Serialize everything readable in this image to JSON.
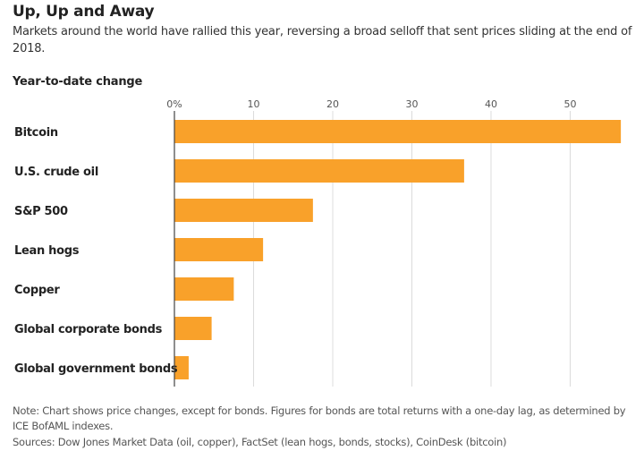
{
  "header": {
    "title": "Up, Up and Away",
    "subtitle": "Markets around the world have rallied this year, reversing a broad selloff that sent prices sliding at the end of 2018."
  },
  "footer": {
    "note": "Note: Chart shows price changes, except for bonds. Figures for bonds are total returns with a one-day lag, as determined by ICE BofAML indexes.",
    "sources": "Sources: Dow Jones Market Data (oil, copper), FactSet (lean hogs, bonds, stocks), CoinDesk (bitcoin)"
  },
  "chart_data": {
    "type": "bar",
    "orientation": "horizontal",
    "title": "Up, Up and Away",
    "subtitle": "Markets around the world have rallied this year, reversing a broad selloff that sent prices sliding at the end of 2018.",
    "ylabel": "Year-to-date change",
    "xlabel": "",
    "categories": [
      "Bitcoin",
      "U.S. crude oil",
      "S&P 500",
      "Lean hogs",
      "Copper",
      "Global corporate bonds",
      "Global government bonds"
    ],
    "values": [
      56.4,
      36.6,
      17.5,
      11.2,
      7.5,
      4.7,
      1.8
    ],
    "xlim": [
      0,
      56.5
    ],
    "ticks": [
      0,
      10,
      20,
      30,
      40,
      50
    ],
    "tick_labels": [
      "0%",
      "10",
      "20",
      "30",
      "40",
      "50"
    ],
    "bar_color": "#f9a12a",
    "grid": true
  }
}
